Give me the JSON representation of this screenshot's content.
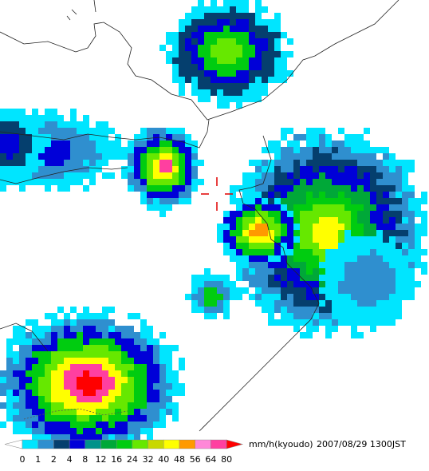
{
  "legend": {
    "unit": "mm/h(kyoudo)",
    "timestamp": "2007/08/29 1300JST",
    "ticks": [
      0,
      1,
      2,
      4,
      8,
      12,
      16,
      24,
      32,
      40,
      48,
      56,
      64,
      80
    ],
    "colors": [
      "#00e5ff",
      "#2f8fcf",
      "#053f6e",
      "#0000d8",
      "#00928a",
      "#00a838",
      "#00cc10",
      "#66e800",
      "#c8d800",
      "#ffff00",
      "#ff9a00",
      "#ff88d8",
      "#ff3fa0",
      "#ff0000"
    ]
  }
}
